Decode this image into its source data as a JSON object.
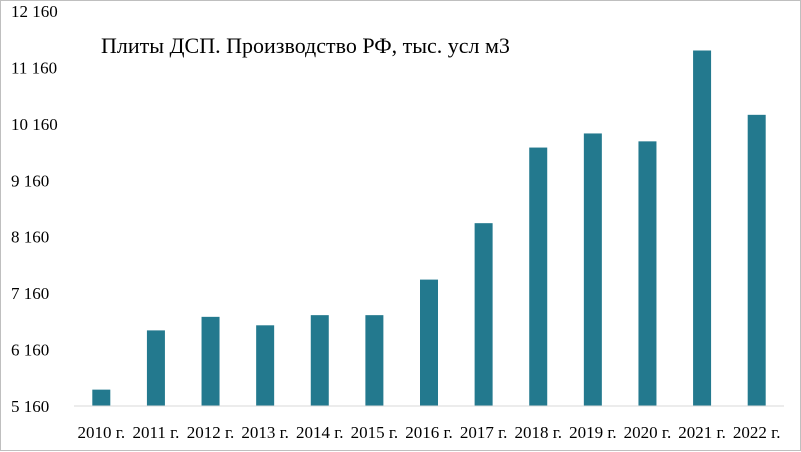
{
  "chart_data": {
    "type": "bar",
    "title": "Плиты ДСП. Производство РФ, тыс. усл м3",
    "xlabel": "",
    "ylabel": "",
    "categories": [
      "2010 г.",
      "2011 г.",
      "2012 г.",
      "2013 г.",
      "2014 г.",
      "2015 г.",
      "2016 г.",
      "2017 г.",
      "2018 г.",
      "2019 г.",
      "2020 г.",
      "2021 г.",
      "2022 г."
    ],
    "values": [
      5450,
      6500,
      6740,
      6590,
      6770,
      6770,
      7400,
      8400,
      9740,
      9990,
      9850,
      11460,
      10320
    ],
    "yticks": [
      5160,
      6160,
      7160,
      8160,
      9160,
      10160,
      11160,
      12160
    ],
    "ytick_labels": [
      "5 160",
      "6 160",
      "7 160",
      "8 160",
      "9 160",
      "10 160",
      "11 160",
      "12 160"
    ],
    "ylim": [
      5160,
      12160
    ],
    "grid": false,
    "legend": "none",
    "colors": {
      "bar": "#23798e"
    }
  }
}
